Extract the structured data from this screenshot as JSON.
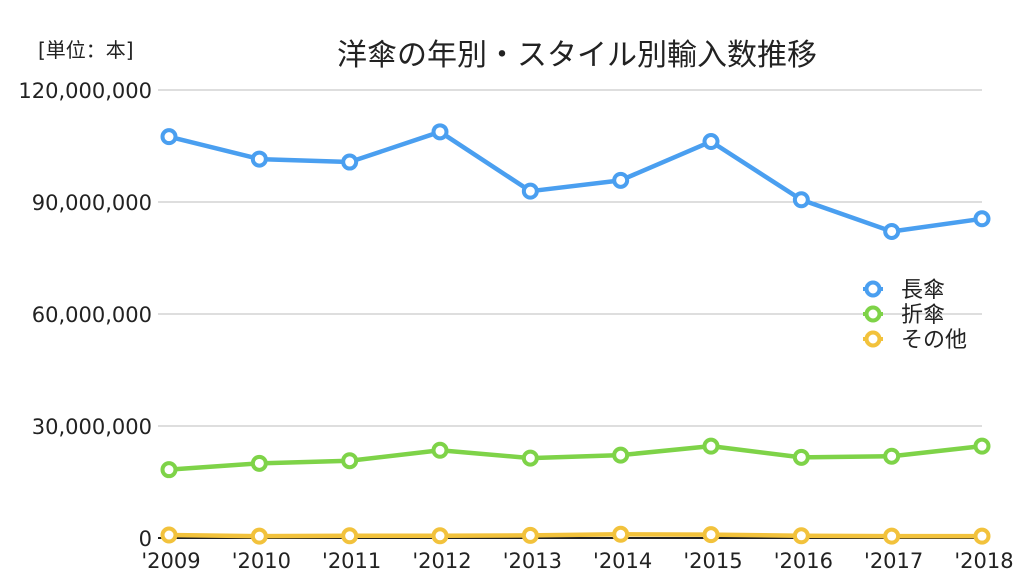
{
  "unit_label": "[単位：本]",
  "chart_data": {
    "type": "line",
    "title": "洋傘の年別・スタイル別輸入数推移",
    "xlabel": "",
    "ylabel": "",
    "categories": [
      "'2009",
      "'2010",
      "'2011",
      "'2012",
      "'2013",
      "'2014",
      "'2015",
      "'2016",
      "'2017",
      "'2018"
    ],
    "ylim": [
      0,
      120000000
    ],
    "yticks": [
      "0",
      "30,000,000",
      "60,000,000",
      "90,000,000",
      "120,000,000"
    ],
    "ytick_values": [
      0,
      30000000,
      60000000,
      90000000,
      120000000
    ],
    "grid": true,
    "legend_position": "right",
    "series": [
      {
        "name": "長傘",
        "color": "#4a9ff0",
        "values": [
          107500000,
          101500000,
          100700000,
          108800000,
          92900000,
          95800000,
          106200000,
          90600000,
          82100000,
          85500000
        ]
      },
      {
        "name": "折傘",
        "color": "#7ed348",
        "values": [
          18300000,
          20000000,
          20700000,
          23500000,
          21400000,
          22200000,
          24600000,
          21600000,
          21900000,
          24600000
        ]
      },
      {
        "name": "その他",
        "color": "#f2c23c",
        "values": [
          800000,
          500000,
          600000,
          600000,
          700000,
          1000000,
          900000,
          600000,
          500000,
          500000
        ]
      }
    ]
  }
}
